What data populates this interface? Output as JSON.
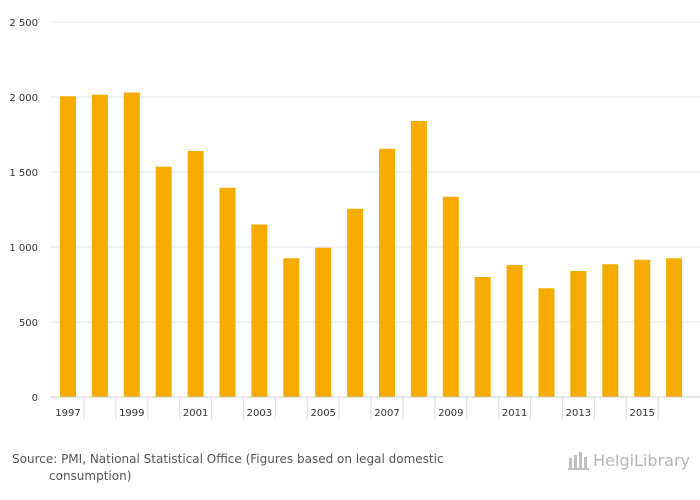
{
  "chart_data": {
    "type": "bar",
    "categories": [
      "1997",
      "1998",
      "1999",
      "2000",
      "2001",
      "2002",
      "2003",
      "2004",
      "2005",
      "2006",
      "2007",
      "2008",
      "2009",
      "2010",
      "2011",
      "2012",
      "2013",
      "2014",
      "2015",
      "2016"
    ],
    "values": [
      2005,
      2015,
      2030,
      1535,
      1640,
      1395,
      1150,
      925,
      995,
      1255,
      1655,
      1840,
      1335,
      800,
      880,
      725,
      840,
      885,
      915,
      925
    ],
    "x_tick_labels": [
      "1997",
      "1999",
      "2001",
      "2003",
      "2005",
      "2007",
      "2009",
      "2011",
      "2013",
      "2015"
    ],
    "y_ticks": [
      0,
      500,
      1000,
      1500,
      2000,
      2500
    ],
    "y_tick_labels": [
      "0",
      "500",
      "1 000",
      "1 500",
      "2 000",
      "2 500"
    ],
    "ylim": [
      0,
      2500
    ],
    "grid": true,
    "bar_color": "#f5ab00",
    "title": "",
    "xlabel": "",
    "ylabel": ""
  },
  "footer": {
    "source_line1": "Source: PMI, National Statistical Office (Figures based on legal domestic",
    "source_line2": "consumption)",
    "logo_text": "HelgiLibrary"
  }
}
